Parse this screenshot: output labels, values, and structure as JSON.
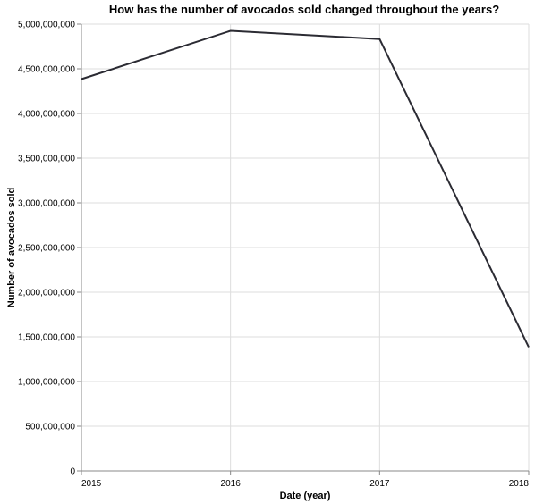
{
  "chart_data": {
    "type": "line",
    "title": "How has the number of avocados sold changed throughout the years?",
    "xlabel": "Date (year)",
    "ylabel": "Number of avocados sold",
    "x": [
      "2015",
      "2016",
      "2017",
      "2018"
    ],
    "x_tick_labels": [
      "2015",
      "2016",
      "2017",
      "2018"
    ],
    "series": [
      {
        "values": [
          4385000000,
          4925000000,
          4833000000,
          1385000000
        ]
      }
    ],
    "ylim": [
      0,
      5000000000
    ],
    "y_ticks": [
      0,
      500000000,
      1000000000,
      1500000000,
      2000000000,
      2500000000,
      3000000000,
      3500000000,
      4000000000,
      4500000000,
      5000000000
    ],
    "y_tick_labels": [
      "0",
      "500,000,000",
      "1,000,000,000",
      "1,500,000,000",
      "2,000,000,000",
      "2,500,000,000",
      "3,000,000,000",
      "3,500,000,000",
      "4,000,000,000",
      "4,500,000,000",
      "5,000,000,000"
    ],
    "grid": true,
    "colors": {
      "line": "#2b2b33"
    }
  }
}
